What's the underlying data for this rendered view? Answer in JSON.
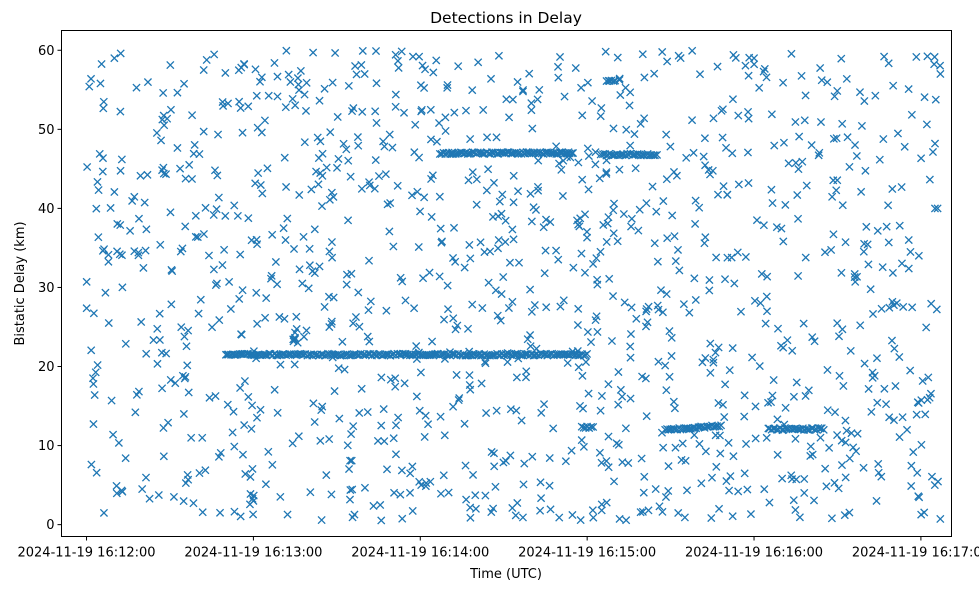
{
  "chart_data": {
    "type": "scatter",
    "title": "Detections in Delay",
    "xlabel": "Time (UTC)",
    "ylabel": "Bistatic Delay (km)",
    "marker": "x",
    "color": "#1f77b4",
    "grid": false,
    "legend": "none",
    "x_unit": "UTC time",
    "xlim": [
      "2024-11-19 16:11:51",
      "2024-11-19 16:17:11"
    ],
    "ylim": [
      -1.5,
      62.5
    ],
    "xticks": [
      "2024-11-19 16:12:00",
      "2024-11-19 16:13:00",
      "2024-11-19 16:14:00",
      "2024-11-19 16:15:00",
      "2024-11-19 16:16:00",
      "2024-11-19 16:17:00"
    ],
    "yticks": [
      0,
      10,
      20,
      30,
      40,
      50,
      60
    ],
    "tracks": [
      {
        "name": "",
        "x_start": "2024-11-19 16:12:50",
        "x_end": "2024-11-19 16:15:00",
        "y": 21.5
      },
      {
        "name": "",
        "x_start": "2024-11-19 16:14:07",
        "x_end": "2024-11-19 16:14:55",
        "y": 47.0
      },
      {
        "name": "",
        "x_start": "2024-11-19 16:15:05",
        "x_end": "2024-11-19 16:15:25",
        "y": 46.8
      },
      {
        "name": "",
        "x_start": "2024-11-19 16:15:28",
        "x_end": "2024-11-19 16:15:48",
        "y_start": 12.0,
        "y_end": 12.5
      },
      {
        "name": "",
        "x_start": "2024-11-19 16:16:05",
        "x_end": "2024-11-19 16:16:25",
        "y": 12.1
      },
      {
        "name": "",
        "x_start": "2024-11-19 16:14:58",
        "x_end": "2024-11-19 16:15:02",
        "y": 12.3
      },
      {
        "name": "",
        "x_start": "2024-11-19 16:15:07",
        "x_end": "2024-11-19 16:15:10",
        "y": 56.2
      }
    ],
    "scatter_density": {
      "count": 1200,
      "x_range": [
        "2024-11-19 16:12:00",
        "2024-11-19 16:17:07"
      ],
      "y_range": [
        0.5,
        60
      ]
    },
    "point_samples": [
      {
        "x": "2024-11-19 16:12:05",
        "y": 55.8
      },
      {
        "x": "2024-11-19 16:12:08",
        "y": 25.5
      },
      {
        "x": "2024-11-19 16:12:10",
        "y": 59.0
      },
      {
        "x": "2024-11-19 16:12:20",
        "y": 4.5
      },
      {
        "x": "2024-11-19 16:12:35",
        "y": 14.0
      },
      {
        "x": "2024-11-19 16:12:48",
        "y": 1.5
      },
      {
        "x": "2024-11-19 16:13:00",
        "y": 3.0
      },
      {
        "x": "2024-11-19 16:13:40",
        "y": 57.0
      },
      {
        "x": "2024-11-19 16:14:20",
        "y": 2.0
      },
      {
        "x": "2024-11-19 16:15:20",
        "y": 59.5
      },
      {
        "x": "2024-11-19 16:16:00",
        "y": 59.0
      },
      {
        "x": "2024-11-19 16:16:28",
        "y": 0.8
      },
      {
        "x": "2024-11-19 16:17:05",
        "y": 5.0
      },
      {
        "x": "2024-11-19 16:17:06",
        "y": 40.0
      },
      {
        "x": "2024-11-19 16:17:07",
        "y": 57.0
      }
    ]
  }
}
